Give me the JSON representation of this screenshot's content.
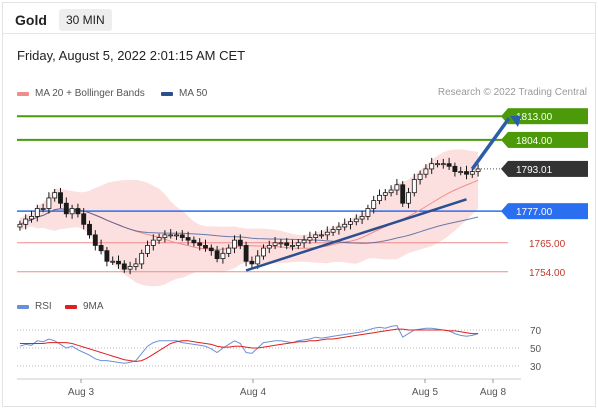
{
  "header": {
    "title": "Gold",
    "timeframe": "30 MIN"
  },
  "date": "Friday, August 5, 2022 2:01:15 AM CET",
  "legend_main": [
    {
      "label": "MA 20 + Bollinger Bands",
      "color": "#f08c8c"
    },
    {
      "label": "MA 50",
      "color": "#2b4f8f"
    }
  ],
  "legend_rsi": [
    {
      "label": "RSI",
      "color": "#6b8fd6"
    },
    {
      "label": "9MA",
      "color": "#e02020"
    }
  ],
  "copyright": "Research © 2022 Trading Central",
  "chart_data": {
    "type": "candlestick",
    "x_labels": [
      "Aug 3",
      "Aug 4",
      "Aug 5",
      "Aug 8"
    ],
    "ylim": [
      1749,
      1818
    ],
    "levels": [
      {
        "value": 1813.0,
        "label": "1813.00",
        "kind": "resistance",
        "color": "#4c9a0a"
      },
      {
        "value": 1804.0,
        "label": "1804.00",
        "kind": "resistance",
        "color": "#4c9a0a"
      },
      {
        "value": 1793.01,
        "label": "1793.01",
        "kind": "last-price",
        "color": "#333333"
      },
      {
        "value": 1777.0,
        "label": "1777.00",
        "kind": "pivot",
        "color": "#2a6ff0"
      },
      {
        "value": 1765.0,
        "label": "1765.00",
        "kind": "support",
        "color": "#f08c8c"
      },
      {
        "value": 1754.0,
        "label": "1754.00",
        "kind": "support",
        "color": "#f08c8c"
      }
    ],
    "closes": [
      1772,
      1774,
      1775,
      1778,
      1778,
      1782,
      1784,
      1780,
      1776,
      1778,
      1776,
      1772,
      1768,
      1764,
      1762,
      1758,
      1758,
      1757,
      1755,
      1756,
      1757,
      1761,
      1764,
      1766,
      1767,
      1768,
      1768,
      1768,
      1767,
      1766,
      1765,
      1764,
      1763,
      1762,
      1759,
      1761,
      1763,
      1766,
      1764,
      1758,
      1757,
      1760,
      1763,
      1764,
      1765,
      1765,
      1764,
      1764,
      1765,
      1766,
      1767,
      1768,
      1768,
      1769,
      1770,
      1771,
      1772,
      1773,
      1774,
      1775,
      1778,
      1781,
      1783,
      1784,
      1785,
      1787,
      1780,
      1784,
      1789,
      1791,
      1793,
      1795,
      1795,
      1795,
      1794,
      1792,
      1792,
      1791,
      1792,
      1793
    ],
    "rsi_ylim": [
      20,
      80
    ],
    "rsi_levels": [
      70,
      50,
      30
    ],
    "rsi": [
      52,
      54,
      53,
      58,
      57,
      60,
      58,
      54,
      50,
      52,
      48,
      45,
      42,
      38,
      36,
      36,
      35,
      34,
      33,
      34,
      36,
      44,
      52,
      56,
      58,
      58,
      58,
      58,
      56,
      55,
      54,
      53,
      52,
      49,
      45,
      50,
      54,
      58,
      55,
      45,
      44,
      50,
      56,
      57,
      58,
      58,
      57,
      56,
      58,
      59,
      60,
      62,
      61,
      62,
      63,
      64,
      65,
      66,
      67,
      68,
      70,
      72,
      73,
      72,
      74,
      75,
      62,
      66,
      70,
      71,
      72,
      72,
      71,
      70,
      69,
      66,
      64,
      63,
      64,
      66
    ],
    "rsi_ma": [
      55,
      55,
      55,
      55,
      55,
      56,
      56,
      56,
      56,
      55,
      53,
      51,
      49,
      47,
      45,
      43,
      41,
      39,
      37,
      36,
      35,
      36,
      39,
      43,
      47,
      51,
      55,
      57,
      58,
      58,
      57,
      56,
      55,
      54,
      52,
      51,
      51,
      52,
      52,
      51,
      50,
      50,
      51,
      52,
      53,
      54,
      55,
      56,
      57,
      57,
      58,
      58,
      59,
      60,
      60,
      61,
      62,
      63,
      64,
      65,
      66,
      67,
      68,
      69,
      70,
      71,
      71,
      70,
      70,
      70,
      70,
      70,
      70,
      70,
      69,
      69,
      68,
      67,
      66,
      66
    ]
  }
}
